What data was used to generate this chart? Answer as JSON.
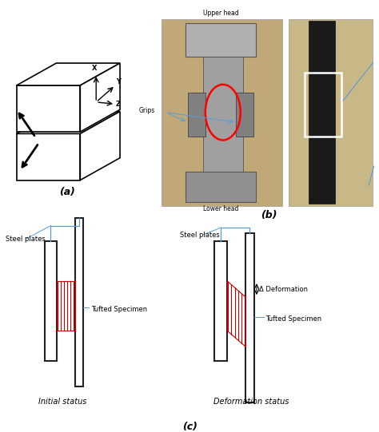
{
  "fig_width": 4.74,
  "fig_height": 5.41,
  "dpi": 100,
  "bg_color": "#ffffff",
  "label_a": "(a)",
  "label_b": "(b)",
  "label_c": "(c)",
  "red_color": "#cc0000",
  "blue_color": "#5b9bd5",
  "annotation_fontsize": 6,
  "sublabel_fontsize": 9,
  "plate_lw": 1.5
}
